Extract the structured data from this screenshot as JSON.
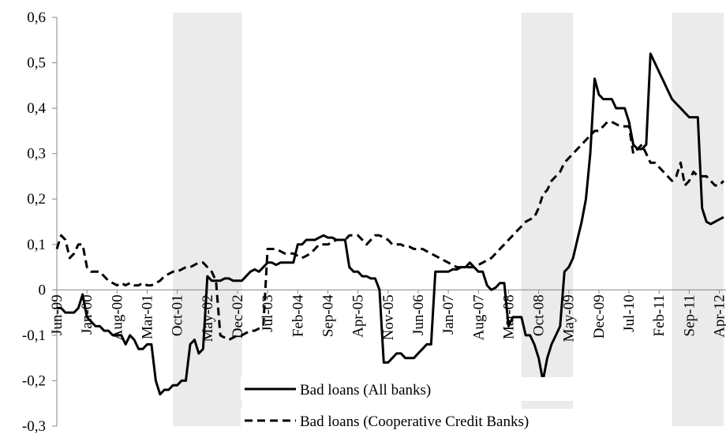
{
  "chart_data": {
    "type": "line",
    "categories": [
      "Jun-99",
      null,
      null,
      null,
      null,
      null,
      null,
      "Jan-00",
      null,
      null,
      null,
      null,
      null,
      null,
      "Aug-00",
      null,
      null,
      null,
      null,
      null,
      null,
      "Mar-01",
      null,
      null,
      null,
      null,
      null,
      null,
      "Oct-01",
      null,
      null,
      null,
      null,
      null,
      null,
      "May-02",
      null,
      null,
      null,
      null,
      null,
      null,
      "Dec-02",
      null,
      null,
      null,
      null,
      null,
      null,
      "Jul-03",
      null,
      null,
      null,
      null,
      null,
      null,
      "Feb-04",
      null,
      null,
      null,
      null,
      null,
      null,
      "Sep-04",
      null,
      null,
      null,
      null,
      null,
      null,
      "Apr-05",
      null,
      null,
      null,
      null,
      null,
      null,
      "Nov-05",
      null,
      null,
      null,
      null,
      null,
      null,
      "Jun-06",
      null,
      null,
      null,
      null,
      null,
      null,
      "Jan-07",
      null,
      null,
      null,
      null,
      null,
      null,
      "Aug-07",
      null,
      null,
      null,
      null,
      null,
      null,
      "Mar-08",
      null,
      null,
      null,
      null,
      null,
      null,
      "Oct-08",
      null,
      null,
      null,
      null,
      null,
      null,
      "May-09",
      null,
      null,
      null,
      null,
      null,
      null,
      "Dec-09",
      null,
      null,
      null,
      null,
      null,
      null,
      "Jul-10",
      null,
      null,
      null,
      null,
      null,
      null,
      "Feb-11",
      null,
      null,
      null,
      null,
      null,
      null,
      "Sep-11",
      null,
      null,
      null,
      null,
      null,
      null,
      "Apr-12",
      null
    ],
    "series": [
      {
        "name": "Bad loans (All banks)",
        "color": "#000000",
        "dash": false,
        "values": [
          -0.04,
          -0.04,
          -0.05,
          -0.05,
          -0.05,
          -0.04,
          -0.01,
          -0.06,
          -0.07,
          -0.08,
          -0.08,
          -0.09,
          -0.09,
          -0.1,
          -0.1,
          -0.1,
          -0.12,
          -0.1,
          -0.11,
          -0.13,
          -0.13,
          -0.12,
          -0.12,
          -0.2,
          -0.23,
          -0.22,
          -0.22,
          -0.21,
          -0.21,
          -0.2,
          -0.2,
          -0.12,
          -0.11,
          -0.14,
          -0.13,
          0.03,
          0.02,
          0.02,
          0.02,
          0.025,
          0.025,
          0.02,
          0.02,
          0.02,
          0.03,
          0.04,
          0.045,
          0.04,
          0.05,
          0.06,
          0.06,
          0.055,
          0.06,
          0.06,
          0.06,
          0.06,
          0.1,
          0.1,
          0.11,
          0.11,
          0.11,
          0.115,
          0.12,
          0.115,
          0.115,
          0.11,
          0.11,
          0.11,
          0.05,
          0.04,
          0.04,
          0.03,
          0.03,
          0.025,
          0.025,
          0.0,
          -0.16,
          -0.16,
          -0.15,
          -0.14,
          -0.14,
          -0.15,
          -0.15,
          -0.15,
          -0.14,
          -0.13,
          -0.12,
          -0.12,
          0.04,
          0.04,
          0.04,
          0.04,
          0.045,
          0.045,
          0.05,
          0.05,
          0.06,
          0.05,
          0.04,
          0.04,
          0.01,
          0.0,
          0.005,
          0.015,
          0.015,
          -0.08,
          -0.06,
          -0.06,
          -0.06,
          -0.1,
          -0.1,
          -0.12,
          -0.15,
          -0.2,
          -0.15,
          -0.12,
          -0.1,
          -0.08,
          0.04,
          0.05,
          0.07,
          0.11,
          0.15,
          0.2,
          0.3,
          0.465,
          0.43,
          0.42,
          0.42,
          0.42,
          0.4,
          0.4,
          0.4,
          0.37,
          0.32,
          0.31,
          0.31,
          0.32,
          0.52,
          0.5,
          0.48,
          0.46,
          0.44,
          0.42,
          0.41,
          0.4,
          0.39,
          0.38,
          0.38,
          0.38,
          0.18,
          0.15,
          0.145,
          0.15,
          0.155,
          0.16
        ]
      },
      {
        "name": "Bad loans (Cooperative Credit Banks)",
        "color": "#000000",
        "dash": true,
        "values": [
          0.09,
          0.12,
          0.11,
          0.07,
          0.08,
          0.1,
          0.1,
          0.05,
          0.04,
          0.04,
          0.04,
          0.03,
          0.02,
          0.015,
          0.01,
          0.015,
          0.01,
          0.015,
          0.01,
          0.01,
          0.015,
          0.01,
          0.01,
          0.015,
          0.02,
          0.03,
          0.035,
          0.04,
          0.04,
          0.045,
          0.05,
          0.05,
          0.055,
          0.06,
          0.06,
          0.05,
          0.04,
          0.02,
          -0.1,
          -0.105,
          -0.11,
          -0.105,
          -0.1,
          -0.1,
          -0.095,
          -0.09,
          -0.09,
          -0.085,
          -0.08,
          0.09,
          0.09,
          0.09,
          0.085,
          0.08,
          0.08,
          0.08,
          0.075,
          0.07,
          0.075,
          0.08,
          0.09,
          0.1,
          0.1,
          0.1,
          0.105,
          0.11,
          0.11,
          0.11,
          0.12,
          0.12,
          0.12,
          0.11,
          0.1,
          0.11,
          0.12,
          0.12,
          0.115,
          0.11,
          0.1,
          0.1,
          0.1,
          0.095,
          0.095,
          0.09,
          0.09,
          0.09,
          0.085,
          0.08,
          0.075,
          0.07,
          0.065,
          0.06,
          0.055,
          0.05,
          0.05,
          0.05,
          0.05,
          0.05,
          0.055,
          0.06,
          0.065,
          0.07,
          0.08,
          0.09,
          0.1,
          0.11,
          0.12,
          0.13,
          0.14,
          0.15,
          0.155,
          0.16,
          0.18,
          0.21,
          0.22,
          0.24,
          0.25,
          0.26,
          0.28,
          0.29,
          0.3,
          0.31,
          0.32,
          0.33,
          0.34,
          0.35,
          0.35,
          0.36,
          0.37,
          0.37,
          0.365,
          0.36,
          0.36,
          0.36,
          0.3,
          0.31,
          0.32,
          0.3,
          0.28,
          0.28,
          0.27,
          0.26,
          0.25,
          0.24,
          0.25,
          0.28,
          0.23,
          0.24,
          0.26,
          0.25,
          0.25,
          0.25,
          0.24,
          0.23,
          0.23,
          0.24
        ]
      }
    ],
    "shaded": [
      [
        27,
        43
      ],
      [
        108,
        120
      ],
      [
        143,
        155
      ]
    ],
    "ylim": [
      -0.3,
      0.6
    ],
    "yticks": [
      {
        "value": -0.3,
        "label": "-0,3"
      },
      {
        "value": -0.2,
        "label": "-0,2"
      },
      {
        "value": -0.1,
        "label": "-0,1"
      },
      0,
      {
        "value": 0.1,
        "label": "0,1"
      },
      {
        "value": 0.2,
        "label": "0,2"
      },
      {
        "value": 0.3,
        "label": "0,3"
      },
      {
        "value": 0.4,
        "label": "0,4"
      },
      {
        "value": 0.5,
        "label": "0,5"
      },
      {
        "value": 0.6,
        "label": "0,6"
      }
    ]
  }
}
